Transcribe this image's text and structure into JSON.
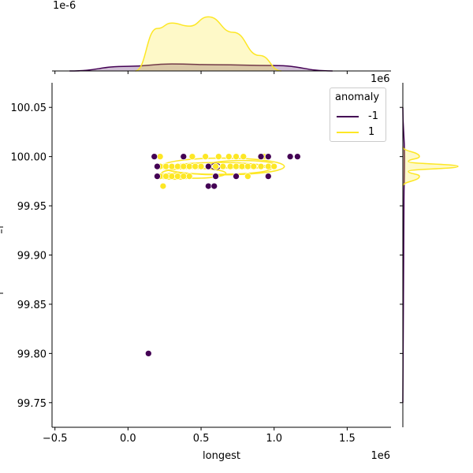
{
  "chart_data": {
    "type": "scatter",
    "subtype": "jointplot (scatter + KDE contours, marginal KDEs)",
    "title": "",
    "xlabel": "longest",
    "ylabel": "",
    "x_offset_label": "1e6",
    "y_offset_label_top_marginal": "1e-6",
    "x_offset_label_top": "1e6",
    "xlim": [
      -0.52,
      1.8
    ],
    "ylim": [
      99.725,
      100.075
    ],
    "x_ticks": [
      "−0.5",
      "0.0",
      "0.5",
      "1.0",
      "1.5"
    ],
    "y_ticks": [
      "100.05",
      "100.00",
      "99.95",
      "99.90",
      "99.85",
      "99.80",
      "99.75"
    ],
    "legend": {
      "title": "anomaly",
      "position": "upper right",
      "entries": [
        {
          "label": "-1",
          "color": "#440154"
        },
        {
          "label": "1",
          "color": "#fde725"
        }
      ]
    },
    "series": [
      {
        "name": "1",
        "color": "#fde725",
        "points": [
          [
            0.22,
            100.0
          ],
          [
            0.44,
            100.0
          ],
          [
            0.53,
            100.0
          ],
          [
            0.62,
            100.0
          ],
          [
            0.69,
            100.0
          ],
          [
            0.74,
            100.0
          ],
          [
            0.79,
            100.0
          ],
          [
            0.93,
            100.0
          ],
          [
            0.22,
            99.99
          ],
          [
            0.26,
            99.99
          ],
          [
            0.3,
            99.99
          ],
          [
            0.34,
            99.99
          ],
          [
            0.38,
            99.99
          ],
          [
            0.42,
            99.99
          ],
          [
            0.46,
            99.99
          ],
          [
            0.5,
            99.99
          ],
          [
            0.55,
            99.99
          ],
          [
            0.6,
            99.99
          ],
          [
            0.65,
            99.99
          ],
          [
            0.7,
            99.99
          ],
          [
            0.74,
            99.99
          ],
          [
            0.78,
            99.99
          ],
          [
            0.82,
            99.99
          ],
          [
            0.86,
            99.99
          ],
          [
            0.91,
            99.99
          ],
          [
            0.96,
            99.99
          ],
          [
            1.0,
            99.99
          ],
          [
            0.22,
            99.98
          ],
          [
            0.26,
            99.98
          ],
          [
            0.3,
            99.98
          ],
          [
            0.34,
            99.98
          ],
          [
            0.38,
            99.98
          ],
          [
            0.42,
            99.98
          ],
          [
            0.82,
            99.98
          ],
          [
            0.24,
            99.97
          ]
        ]
      },
      {
        "name": "-1",
        "color": "#440154",
        "points": [
          [
            0.14,
            99.8
          ],
          [
            0.18,
            100.0
          ],
          [
            0.38,
            100.0
          ],
          [
            0.91,
            100.0
          ],
          [
            0.96,
            100.0
          ],
          [
            1.11,
            100.0
          ],
          [
            1.16,
            100.0
          ],
          [
            0.2,
            99.99
          ],
          [
            0.55,
            99.99
          ],
          [
            0.2,
            99.98
          ],
          [
            0.6,
            99.98
          ],
          [
            0.74,
            99.98
          ],
          [
            0.96,
            99.98
          ],
          [
            0.55,
            99.97
          ],
          [
            0.59,
            99.97
          ]
        ]
      }
    ],
    "marginal_x": {
      "type": "area",
      "series": [
        {
          "name": "1",
          "color": "#fde725",
          "x": [
            0.05,
            0.2,
            0.3,
            0.42,
            0.55,
            0.72,
            0.9,
            1.05
          ],
          "density": [
            0,
            0.55,
            0.62,
            0.58,
            0.7,
            0.5,
            0.2,
            0
          ]
        },
        {
          "name": "-1",
          "color": "#440154",
          "x": [
            -0.4,
            0,
            0.3,
            0.6,
            1.0,
            1.4
          ],
          "density": [
            0,
            0.06,
            0.09,
            0.08,
            0.07,
            0
          ]
        }
      ]
    },
    "marginal_y": {
      "type": "area",
      "series": [
        {
          "name": "1",
          "color": "#fde725",
          "y": [
            99.97,
            99.98,
            99.985,
            99.99,
            99.995,
            100.0,
            100.01
          ],
          "density": [
            0,
            0.3,
            0.1,
            1.0,
            0.1,
            0.3,
            0
          ]
        },
        {
          "name": "-1",
          "color": "#440154",
          "y": [
            99.75,
            99.95,
            100.0,
            100.05
          ],
          "density": [
            0,
            0.02,
            0.03,
            0
          ]
        }
      ]
    }
  },
  "axes": {
    "xlabel": "longest",
    "x_offset": "1e6",
    "top_marginal_offset": "1e-6",
    "top_marginal_x_offset": "1e6"
  },
  "legend": {
    "title": "anomaly",
    "items": [
      {
        "label": "-1",
        "color": "#440154"
      },
      {
        "label": "1",
        "color": "#fde725"
      }
    ]
  }
}
